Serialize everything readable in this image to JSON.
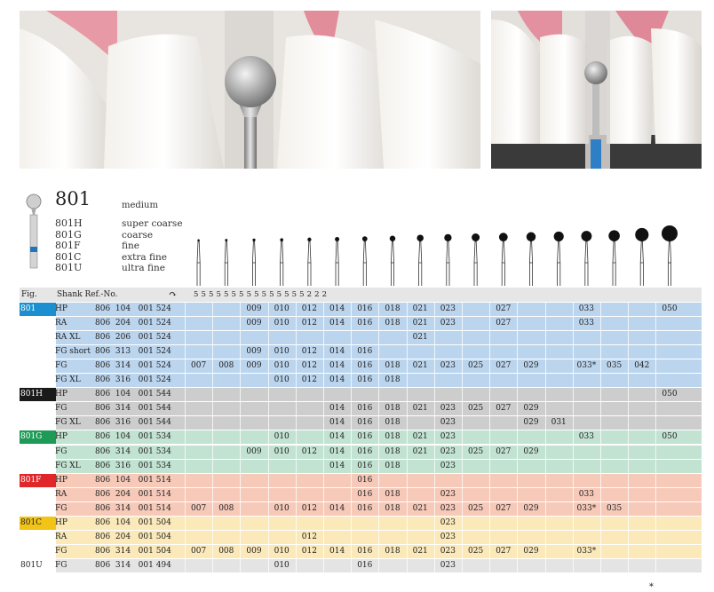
{
  "photos": [
    {
      "name": "main-photo",
      "alt_hint": "teeth with round diamond bur"
    },
    {
      "name": "side-photo",
      "alt_hint": "teeth with bur and blue shank"
    }
  ],
  "product": {
    "ref": "801",
    "grit": "medium",
    "variants": [
      "801H",
      "801G",
      "801F",
      "801C",
      "801U"
    ],
    "variant_grits": [
      "super coarse",
      "coarse",
      "fine",
      "extra fine",
      "ultra fine"
    ]
  },
  "table_header": {
    "fig": "Fig.",
    "shank_ref": "Shank Ref.-No.",
    "scale": "5 5 5 5 5 5 5 5 5 5 5 5 5 5 5 2 2 2"
  },
  "sizes": [
    "007",
    "008",
    "009",
    "010",
    "012",
    "014",
    "016",
    "018",
    "021",
    "023",
    "025",
    "027",
    "029",
    "031",
    "033",
    "035",
    "042",
    "050"
  ],
  "groups": [
    {
      "fig": "801",
      "color": "#1b8fd0",
      "row_bg": "#bcd5ee",
      "fig_light": true,
      "rows": [
        {
          "shank": "HP",
          "ref": "806  104   001 524",
          "cells": [
            "",
            "",
            "009",
            "010",
            "012",
            "014",
            "016",
            "018",
            "021",
            "023",
            "",
            "027",
            "",
            "",
            "033",
            "",
            "",
            "050"
          ]
        },
        {
          "shank": "RA",
          "ref": "806  204   001 524",
          "cells": [
            "",
            "",
            "009",
            "010",
            "012",
            "014",
            "016",
            "018",
            "021",
            "023",
            "",
            "027",
            "",
            "",
            "033",
            "",
            "",
            ""
          ]
        },
        {
          "shank": "RA XL",
          "ref": "806  206   001 524",
          "cells": [
            "",
            "",
            "",
            "",
            "",
            "",
            "",
            "",
            "021",
            "",
            "",
            "",
            "",
            "",
            "",
            "",
            "",
            ""
          ]
        },
        {
          "shank": "FG short",
          "ref": "806  313   001 524",
          "cells": [
            "",
            "",
            "009",
            "010",
            "012",
            "014",
            "016",
            "",
            "",
            "",
            "",
            "",
            "",
            "",
            "",
            "",
            "",
            ""
          ]
        },
        {
          "shank": "FG",
          "ref": "806  314   001 524",
          "cells": [
            "007",
            "008",
            "009",
            "010",
            "012",
            "014",
            "016",
            "018",
            "021",
            "023",
            "025",
            "027",
            "029",
            "",
            "033*",
            "035",
            "042",
            ""
          ]
        },
        {
          "shank": "FG XL",
          "ref": "806  316   001 524",
          "cells": [
            "",
            "",
            "",
            "010",
            "012",
            "014",
            "016",
            "018",
            "",
            "",
            "",
            "",
            "",
            "",
            "",
            "",
            "",
            ""
          ]
        }
      ]
    },
    {
      "fig": "801H",
      "color": "#1a1a1a",
      "row_bg": "#cdcdcd",
      "fig_light": true,
      "rows": [
        {
          "shank": "HP",
          "ref": "806  104   001 544",
          "cells": [
            "",
            "",
            "",
            "",
            "",
            "",
            "",
            "",
            "",
            "",
            "",
            "",
            "",
            "",
            "",
            "",
            "",
            "050"
          ]
        },
        {
          "shank": "FG",
          "ref": "806  314   001 544",
          "cells": [
            "",
            "",
            "",
            "",
            "",
            "014",
            "016",
            "018",
            "021",
            "023",
            "025",
            "027",
            "029",
            "",
            "",
            "",
            "",
            ""
          ]
        },
        {
          "shank": "FG XL",
          "ref": "806  316   001 544",
          "cells": [
            "",
            "",
            "",
            "",
            "",
            "014",
            "016",
            "018",
            "",
            "023",
            "",
            "",
            "029",
            "031",
            "",
            "",
            "",
            ""
          ]
        }
      ]
    },
    {
      "fig": "801G",
      "color": "#1d9a55",
      "row_bg": "#c2e3d1",
      "fig_light": true,
      "rows": [
        {
          "shank": "HP",
          "ref": "806  104   001 534",
          "cells": [
            "",
            "",
            "",
            "010",
            "",
            "014",
            "016",
            "018",
            "021",
            "023",
            "",
            "",
            "",
            "",
            "033",
            "",
            "",
            "050"
          ]
        },
        {
          "shank": "FG",
          "ref": "806  314   001 534",
          "cells": [
            "",
            "",
            "009",
            "010",
            "012",
            "014",
            "016",
            "018",
            "021",
            "023",
            "025",
            "027",
            "029",
            "",
            "",
            "",
            "",
            ""
          ]
        },
        {
          "shank": "FG XL",
          "ref": "806  316   001 534",
          "cells": [
            "",
            "",
            "",
            "",
            "",
            "014",
            "016",
            "018",
            "",
            "023",
            "",
            "",
            "",
            "",
            "",
            "",
            "",
            ""
          ]
        }
      ]
    },
    {
      "fig": "801F",
      "color": "#e0252b",
      "row_bg": "#f6c9b9",
      "fig_light": true,
      "rows": [
        {
          "shank": "HP",
          "ref": "806  104   001 514",
          "cells": [
            "",
            "",
            "",
            "",
            "",
            "",
            "016",
            "",
            "",
            "",
            "",
            "",
            "",
            "",
            "",
            "",
            "",
            ""
          ]
        },
        {
          "shank": "RA",
          "ref": "806  204   001 514",
          "cells": [
            "",
            "",
            "",
            "",
            "",
            "",
            "016",
            "018",
            "",
            "023",
            "",
            "",
            "",
            "",
            "033",
            "",
            "",
            ""
          ]
        },
        {
          "shank": "FG",
          "ref": "806  314   001 514",
          "cells": [
            "007",
            "008",
            "",
            "010",
            "012",
            "014",
            "016",
            "018",
            "021",
            "023",
            "025",
            "027",
            "029",
            "",
            "033*",
            "035",
            "",
            ""
          ]
        }
      ]
    },
    {
      "fig": "801C",
      "color": "#f2c418",
      "row_bg": "#fbe9b9",
      "fig_light": false,
      "rows": [
        {
          "shank": "HP",
          "ref": "806  104   001 504",
          "cells": [
            "",
            "",
            "",
            "",
            "",
            "",
            "",
            "",
            "",
            "023",
            "",
            "",
            "",
            "",
            "",
            "",
            "",
            ""
          ]
        },
        {
          "shank": "RA",
          "ref": "806  204   001 504",
          "cells": [
            "",
            "",
            "",
            "",
            "012",
            "",
            "",
            "",
            "",
            "023",
            "",
            "",
            "",
            "",
            "",
            "",
            "",
            ""
          ]
        },
        {
          "shank": "FG",
          "ref": "806  314   001 504",
          "cells": [
            "007",
            "008",
            "009",
            "010",
            "012",
            "014",
            "016",
            "018",
            "021",
            "023",
            "025",
            "027",
            "029",
            "",
            "033*",
            "",
            "",
            ""
          ]
        }
      ]
    },
    {
      "fig": "801U",
      "color": "#ffffff",
      "row_bg": "#e4e4e4",
      "fig_light": false,
      "rows": [
        {
          "shank": "FG",
          "ref": "806  314   001 494",
          "cells": [
            "",
            "",
            "",
            "010",
            "",
            "",
            "016",
            "",
            "",
            "023",
            "",
            "",
            "",
            "",
            "",
            "",
            "",
            ""
          ]
        }
      ]
    }
  ],
  "footnote": "*"
}
